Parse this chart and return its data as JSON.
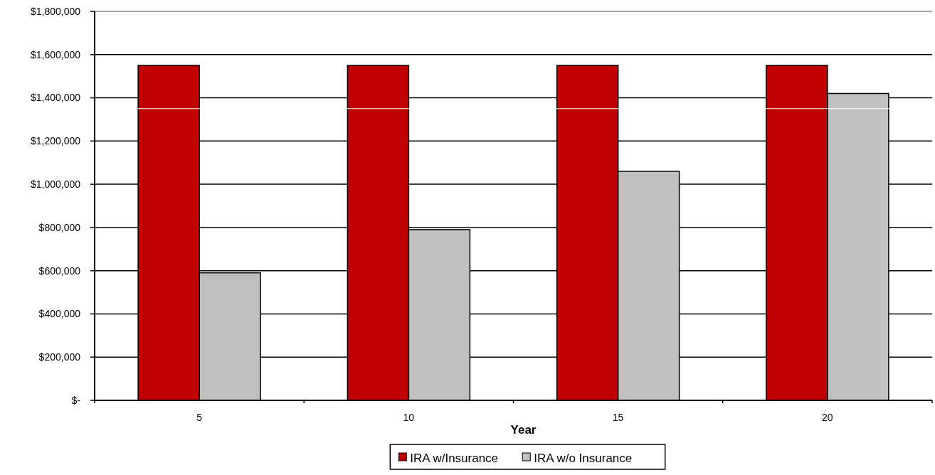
{
  "chart_data": {
    "type": "bar",
    "xlabel": "Year",
    "categories": [
      "5",
      "10",
      "15",
      "20"
    ],
    "series": [
      {
        "name": "IRA w/Insurance",
        "color": "#c00000",
        "values": [
          1550000,
          1550000,
          1550000,
          1550000
        ]
      },
      {
        "name": "IRA w/o Insurance",
        "color": "#c0c0c0",
        "values": [
          590000,
          790000,
          1060000,
          1420000
        ]
      }
    ],
    "ylim": [
      0,
      1800000
    ],
    "yticks": [
      {
        "value": 0,
        "label": "$-"
      },
      {
        "value": 200000,
        "label": "$200,000"
      },
      {
        "value": 400000,
        "label": "$400,000"
      },
      {
        "value": 600000,
        "label": "$600,000"
      },
      {
        "value": 800000,
        "label": "$800,000"
      },
      {
        "value": 1000000,
        "label": "$1,000,000"
      },
      {
        "value": 1200000,
        "label": "$1,200,000"
      },
      {
        "value": 1400000,
        "label": "$1,400,000"
      },
      {
        "value": 1600000,
        "label": "$1,600,000"
      },
      {
        "value": 1800000,
        "label": "$1,800,000"
      }
    ],
    "ref_lines": [
      {
        "axis": "y",
        "value": 1350000,
        "color": "#ffffff"
      }
    ],
    "grid": "y",
    "legend": "bottom"
  }
}
